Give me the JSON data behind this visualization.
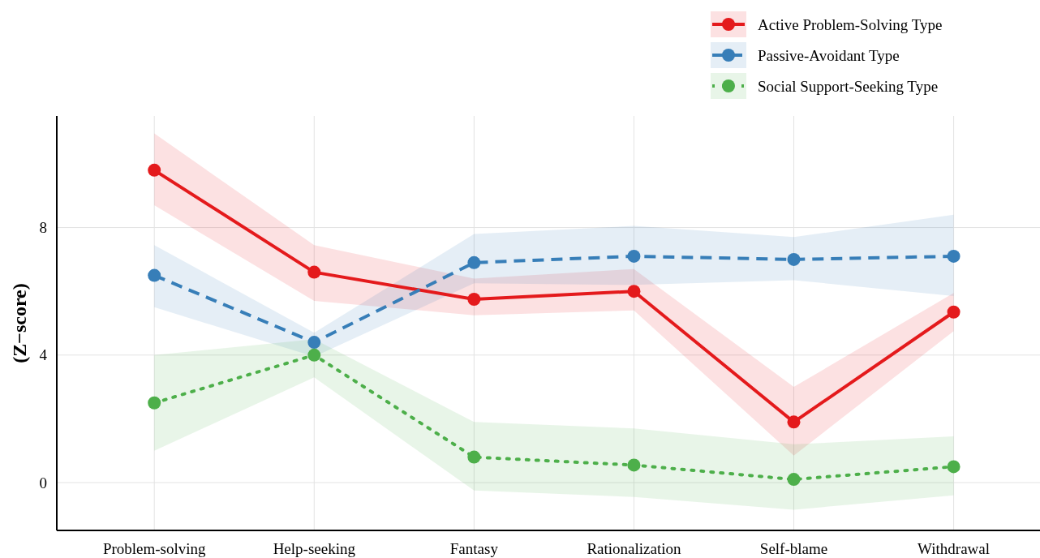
{
  "chart_data": {
    "type": "line",
    "ylabel": "(Z−score)",
    "categories": [
      "Problem-solving",
      "Help-seeking",
      "Fantasy",
      "Rationalization",
      "Self-blame",
      "Withdrawal"
    ],
    "series": [
      {
        "name": "Active Problem-Solving Type",
        "color": "#e41a1c",
        "line_style": "solid",
        "values": [
          9.8,
          6.6,
          5.75,
          6.0,
          1.9,
          5.35
        ],
        "lower": [
          8.7,
          5.7,
          5.25,
          5.4,
          0.85,
          4.75
        ],
        "upper": [
          10.95,
          7.45,
          6.4,
          6.7,
          3.0,
          5.95
        ]
      },
      {
        "name": "Passive-Avoidant Type",
        "color": "#377eb8",
        "line_style": "dashed",
        "values": [
          6.5,
          4.4,
          6.9,
          7.1,
          7.0,
          7.1
        ],
        "lower": [
          5.5,
          3.95,
          6.25,
          6.2,
          6.35,
          5.85
        ],
        "upper": [
          7.45,
          4.7,
          7.8,
          8.05,
          7.7,
          8.4
        ]
      },
      {
        "name": "Social Support-Seeking Type",
        "color": "#4daf4a",
        "line_style": "dotted",
        "values": [
          2.5,
          4.0,
          0.8,
          0.55,
          0.1,
          0.5
        ],
        "lower": [
          1.0,
          3.3,
          -0.25,
          -0.45,
          -0.85,
          -0.4
        ],
        "upper": [
          4.0,
          4.5,
          1.9,
          1.7,
          1.2,
          1.45
        ]
      }
    ],
    "ylim": [
      -1.5,
      11.5
    ],
    "yticks": [
      0,
      4,
      8
    ],
    "grid": true,
    "legend": "top right",
    "marker": "circle"
  }
}
